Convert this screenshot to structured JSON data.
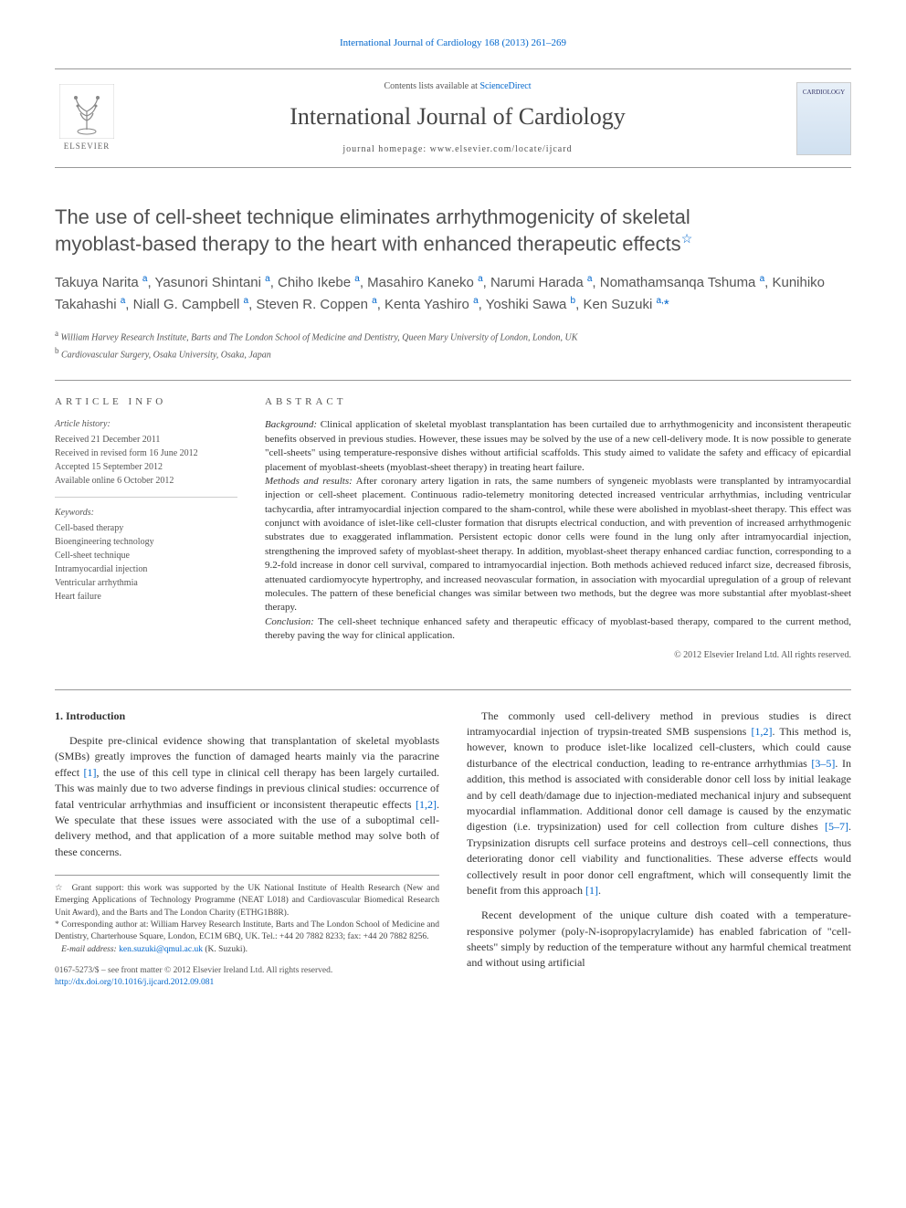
{
  "top_citation": "International Journal of Cardiology 168 (2013) 261–269",
  "header": {
    "contents_prefix": "Contents lists available at ",
    "contents_link": "ScienceDirect",
    "journal_name": "International Journal of Cardiology",
    "homepage_label": "journal homepage: www.elsevier.com/locate/ijcard",
    "elsevier_label": "ELSEVIER",
    "cover_text": "CARDIOLOGY"
  },
  "title": {
    "line1": "The use of cell-sheet technique eliminates arrhythmogenicity of skeletal",
    "line2": "myoblast-based therapy to the heart with enhanced therapeutic effects",
    "star": "☆"
  },
  "authors_html": "Takuya Narita <sup>a</sup>, Yasunori Shintani <sup>a</sup>, Chiho Ikebe <sup>a</sup>, Masahiro Kaneko <sup>a</sup>, Narumi Harada <sup>a</sup>, Nomathamsanqa Tshuma <sup>a</sup>, Kunihiko Takahashi <sup>a</sup>, Niall G. Campbell <sup>a</sup>, Steven R. Coppen <sup>a</sup>, Kenta Yashiro <sup>a</sup>, Yoshiki Sawa <sup>b</sup>, Ken Suzuki <sup>a,</sup><span class='corr'>*</span>",
  "affiliations": {
    "a": "William Harvey Research Institute, Barts and The London School of Medicine and Dentistry, Queen Mary University of London, London, UK",
    "b": "Cardiovascular Surgery, Osaka University, Osaka, Japan"
  },
  "article_info": {
    "heading": "ARTICLE INFO",
    "history_label": "Article history:",
    "received": "Received 21 December 2011",
    "revised": "Received in revised form 16 June 2012",
    "accepted": "Accepted 15 September 2012",
    "online": "Available online 6 October 2012",
    "keywords_label": "Keywords:",
    "keywords": [
      "Cell-based therapy",
      "Bioengineering technology",
      "Cell-sheet technique",
      "Intramyocardial injection",
      "Ventricular arrhythmia",
      "Heart failure"
    ]
  },
  "abstract": {
    "heading": "ABSTRACT",
    "background_label": "Background:",
    "background": "Clinical application of skeletal myoblast transplantation has been curtailed due to arrhythmogenicity and inconsistent therapeutic benefits observed in previous studies. However, these issues may be solved by the use of a new cell-delivery mode. It is now possible to generate \"cell-sheets\" using temperature-responsive dishes without artificial scaffolds. This study aimed to validate the safety and efficacy of epicardial placement of myoblast-sheets (myoblast-sheet therapy) in treating heart failure.",
    "methods_label": "Methods and results:",
    "methods": "After coronary artery ligation in rats, the same numbers of syngeneic myoblasts were transplanted by intramyocardial injection or cell-sheet placement. Continuous radio-telemetry monitoring detected increased ventricular arrhythmias, including ventricular tachycardia, after intramyocardial injection compared to the sham-control, while these were abolished in myoblast-sheet therapy. This effect was conjunct with avoidance of islet-like cell-cluster formation that disrupts electrical conduction, and with prevention of increased arrhythmogenic substrates due to exaggerated inflammation. Persistent ectopic donor cells were found in the lung only after intramyocardial injection, strengthening the improved safety of myoblast-sheet therapy. In addition, myoblast-sheet therapy enhanced cardiac function, corresponding to a 9.2-fold increase in donor cell survival, compared to intramyocardial injection. Both methods achieved reduced infarct size, decreased fibrosis, attenuated cardiomyocyte hypertrophy, and increased neovascular formation, in association with myocardial upregulation of a group of relevant molecules. The pattern of these beneficial changes was similar between two methods, but the degree was more substantial after myoblast-sheet therapy.",
    "conclusion_label": "Conclusion:",
    "conclusion": "The cell-sheet technique enhanced safety and therapeutic efficacy of myoblast-based therapy, compared to the current method, thereby paving the way for clinical application.",
    "copyright": "© 2012 Elsevier Ireland Ltd. All rights reserved."
  },
  "body": {
    "section_heading": "1. Introduction",
    "col1_p1": "Despite pre-clinical evidence showing that transplantation of skeletal myoblasts (SMBs) greatly improves the function of damaged hearts mainly via the paracrine effect [1], the use of this cell type in clinical cell therapy has been largely curtailed. This was mainly due to two adverse findings in previous clinical studies: occurrence of fatal ventricular arrhythmias and insufficient or inconsistent therapeutic effects [1,2]. We speculate that these issues were associated with the use of a suboptimal cell-delivery method, and that application of a more suitable method may solve both of these concerns.",
    "col2_p1": "The commonly used cell-delivery method in previous studies is direct intramyocardial injection of trypsin-treated SMB suspensions [1,2]. This method is, however, known to produce islet-like localized cell-clusters, which could cause disturbance of the electrical conduction, leading to re-entrance arrhythmias [3–5]. In addition, this method is associated with considerable donor cell loss by initial leakage and by cell death/damage due to injection-mediated mechanical injury and subsequent myocardial inflammation. Additional donor cell damage is caused by the enzymatic digestion (i.e. trypsinization) used for cell collection from culture dishes [5–7]. Trypsinization disrupts cell surface proteins and destroys cell–cell connections, thus deteriorating donor cell viability and functionalities. These adverse effects would collectively result in poor donor cell engraftment, which will consequently limit the benefit from this approach [1].",
    "col2_p2": "Recent development of the unique culture dish coated with a temperature-responsive polymer (poly-N-isopropylacrylamide) has enabled fabrication of \"cell-sheets\" simply by reduction of the temperature without any harmful chemical treatment and without using artificial"
  },
  "footnotes": {
    "grant": "Grant support: this work was supported by the UK National Institute of Health Research (New and Emerging Applications of Technology Programme (NEAT L018) and Cardiovascular Biomedical Research Unit Award), and the Barts and The London Charity (ETHG1B8R).",
    "corresponding": "Corresponding author at: William Harvey Research Institute, Barts and The London School of Medicine and Dentistry, Charterhouse Square, London, EC1M 6BQ, UK. Tel.: +44 20 7882 8233; fax: +44 20 7882 8256.",
    "email_label": "E-mail address:",
    "email": "ken.suzuki@qmul.ac.uk",
    "email_suffix": "(K. Suzuki)."
  },
  "footer": {
    "issn": "0167-5273/$ – see front matter © 2012 Elsevier Ireland Ltd. All rights reserved.",
    "doi": "http://dx.doi.org/10.1016/j.ijcard.2012.09.081"
  },
  "colors": {
    "link": "#0066cc",
    "text": "#333333",
    "muted": "#555555",
    "rule": "#999999"
  }
}
